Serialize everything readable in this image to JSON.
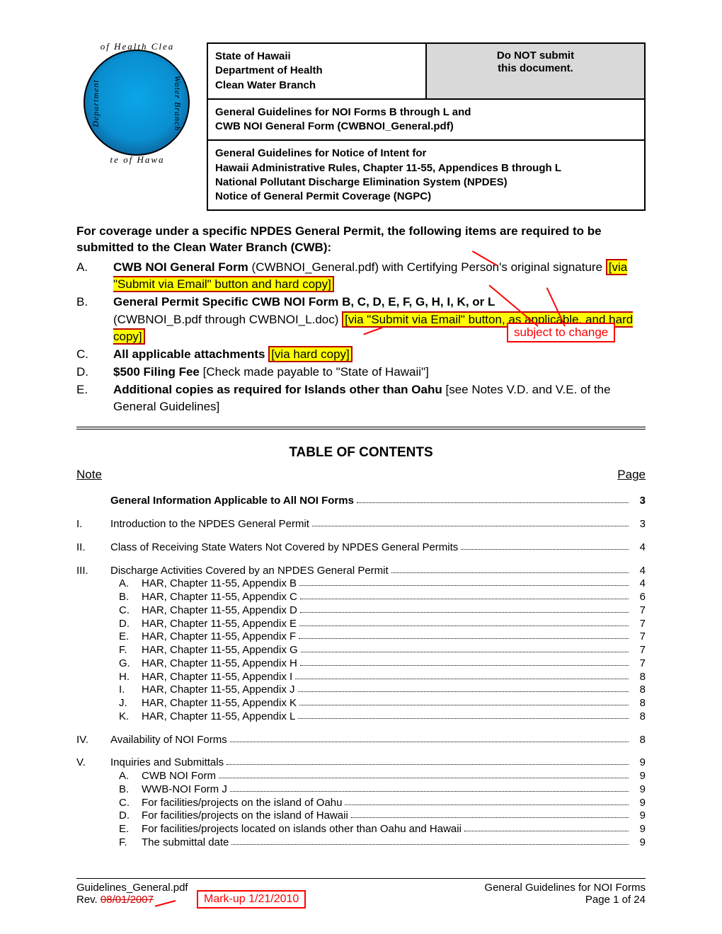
{
  "logo": {
    "arc_top": "of Health Clea",
    "arc_bottom": "te of Hawa",
    "arc_left": "Department",
    "arc_right": "Water Branch"
  },
  "header": {
    "dept_line1": "State of Hawaii",
    "dept_line2": "Department of Health",
    "dept_line3": "Clean Water Branch",
    "warn_line1": "Do NOT submit",
    "warn_line2": "this document.",
    "row2_line1": "General Guidelines for NOI Forms B through L and",
    "row2_line2": "CWB NOI General Form (CWBNOI_General.pdf)",
    "row3_line1": "General Guidelines for Notice of Intent for",
    "row3_line2": "Hawaii Administrative Rules, Chapter 11-55, Appendices B through L",
    "row3_line3": "National Pollutant Discharge Elimination System (NPDES)",
    "row3_line4": "Notice of General Permit Coverage (NGPC)"
  },
  "intro": "For coverage under a specific NPDES General Permit, the following items are required to be submitted to the Clean Water Branch (CWB):",
  "items": {
    "a": {
      "letter": "A.",
      "bold": "CWB NOI General Form",
      "tail": " (CWBNOI_General.pdf) with Certifying Person's original signature ",
      "hl": "[via \"Submit via Email\" button and hard copy]"
    },
    "b": {
      "letter": "B.",
      "bold": "General Permit Specific CWB NOI Form B, C, D, E, F, G, H, I, K, or L",
      "tail1": "(CWBNOI_B.pdf through CWBNOI_L.doc) ",
      "hl": "[via \"Submit via Email\" button, as applicable, and hard copy]"
    },
    "c": {
      "letter": "C.",
      "bold": "All applicable attachments ",
      "hl": "[via hard copy]"
    },
    "d": {
      "letter": "D.",
      "bold": "$500 Filing Fee",
      "tail": " [Check made payable to \"State of Hawaii\"]"
    },
    "e": {
      "letter": "E.",
      "bold": "Additional copies as required for Islands other than Oahu",
      "tail": " [see Notes V.D. and V.E. of the General Guidelines]"
    }
  },
  "subject_to_change": "subject to change",
  "toc": {
    "title": "TABLE OF CONTENTS",
    "left_head": "Note",
    "right_head": "Page",
    "sec0": {
      "label": "General Information Applicable to All NOI Forms",
      "pg": "3"
    },
    "I": {
      "num": "I.",
      "label": "Introduction to the NPDES General Permit",
      "pg": "3"
    },
    "II": {
      "num": "II.",
      "label": "Class of Receiving State Waters Not Covered by NPDES General Permits",
      "pg": "4"
    },
    "III": {
      "num": "III.",
      "label": "Discharge Activities Covered by an NPDES General Permit",
      "pg": "4",
      "subs": [
        {
          "n": "A.",
          "l": "HAR, Chapter 11-55, Appendix B",
          "p": "4"
        },
        {
          "n": "B.",
          "l": "HAR, Chapter 11-55, Appendix C",
          "p": "6"
        },
        {
          "n": "C.",
          "l": "HAR, Chapter 11-55, Appendix D",
          "p": "7"
        },
        {
          "n": "D.",
          "l": "HAR, Chapter 11-55, Appendix E",
          "p": "7"
        },
        {
          "n": "E.",
          "l": "HAR, Chapter 11-55, Appendix F",
          "p": "7"
        },
        {
          "n": "F.",
          "l": "HAR, Chapter 11-55, Appendix G",
          "p": "7"
        },
        {
          "n": "G.",
          "l": "HAR, Chapter 11-55, Appendix H",
          "p": "7"
        },
        {
          "n": "H.",
          "l": "HAR, Chapter 11-55, Appendix I",
          "p": "8"
        },
        {
          "n": "I.",
          "l": "HAR, Chapter 11-55, Appendix J",
          "p": "8"
        },
        {
          "n": "J.",
          "l": "HAR, Chapter 11-55, Appendix K",
          "p": "8"
        },
        {
          "n": "K.",
          "l": "HAR, Chapter 11-55, Appendix L",
          "p": "8"
        }
      ]
    },
    "IV": {
      "num": "IV.",
      "label": "Availability of NOI Forms",
      "pg": "8"
    },
    "V": {
      "num": "V.",
      "label": "Inquiries and Submittals",
      "pg": "9",
      "subs": [
        {
          "n": "A.",
          "l": "CWB NOI Form",
          "p": "9"
        },
        {
          "n": "B.",
          "l": "WWB-NOI Form J",
          "p": "9"
        },
        {
          "n": "C.",
          "l": "For facilities/projects on the island of Oahu",
          "p": "9"
        },
        {
          "n": "D.",
          "l": "For facilities/projects on the island of Hawaii",
          "p": "9"
        },
        {
          "n": "E.",
          "l": "For facilities/projects located on islands other than Oahu and Hawaii",
          "p": "9"
        },
        {
          "n": "F.",
          "l": "The submittal date",
          "p": "9"
        }
      ]
    }
  },
  "footer": {
    "left1": "Guidelines_General.pdf",
    "right1": "General Guidelines for NOI Forms",
    "rev_prefix": "Rev. ",
    "rev_strike": "08/01/2007",
    "right2": "Page 1 of 24",
    "markup": "Mark-up 1/21/2010"
  },
  "colors": {
    "highlight_bg": "#ffff00",
    "red": "#ff0000",
    "warn_bg": "#d9d9d9"
  }
}
